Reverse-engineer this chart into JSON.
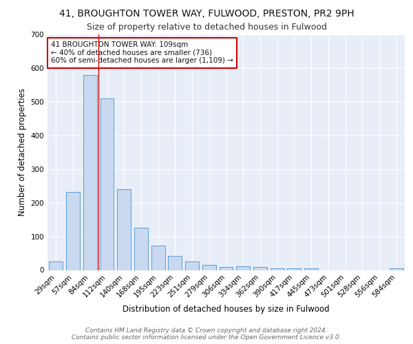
{
  "title_line1": "41, BROUGHTON TOWER WAY, FULWOOD, PRESTON, PR2 9PH",
  "title_line2": "Size of property relative to detached houses in Fulwood",
  "xlabel": "Distribution of detached houses by size in Fulwood",
  "ylabel": "Number of detached properties",
  "categories": [
    "29sqm",
    "57sqm",
    "84sqm",
    "112sqm",
    "140sqm",
    "168sqm",
    "195sqm",
    "223sqm",
    "251sqm",
    "279sqm",
    "306sqm",
    "334sqm",
    "362sqm",
    "390sqm",
    "417sqm",
    "445sqm",
    "473sqm",
    "501sqm",
    "528sqm",
    "556sqm",
    "584sqm"
  ],
  "values": [
    25,
    232,
    580,
    510,
    240,
    125,
    72,
    42,
    25,
    15,
    10,
    12,
    10,
    5,
    5,
    5,
    0,
    0,
    0,
    0,
    6
  ],
  "bar_color": "#c9d9f0",
  "bar_edge_color": "#5b9bd5",
  "bar_width": 0.8,
  "annotation_text": "41 BROUGHTON TOWER WAY: 109sqm\n← 40% of detached houses are smaller (736)\n60% of semi-detached houses are larger (1,109) →",
  "ylim": [
    0,
    700
  ],
  "yticks": [
    0,
    100,
    200,
    300,
    400,
    500,
    600,
    700
  ],
  "background_color": "#e8eef8",
  "grid_color": "#ffffff",
  "footer_line1": "Contains HM Land Registry data © Crown copyright and database right 2024.",
  "footer_line2": "Contains public sector information licensed under the Open Government Licence v3.0.",
  "title_fontsize": 10,
  "subtitle_fontsize": 9,
  "axis_label_fontsize": 8.5,
  "tick_fontsize": 7.5,
  "annotation_fontsize": 7.5,
  "footer_fontsize": 6.5,
  "red_line_x": 2.5
}
